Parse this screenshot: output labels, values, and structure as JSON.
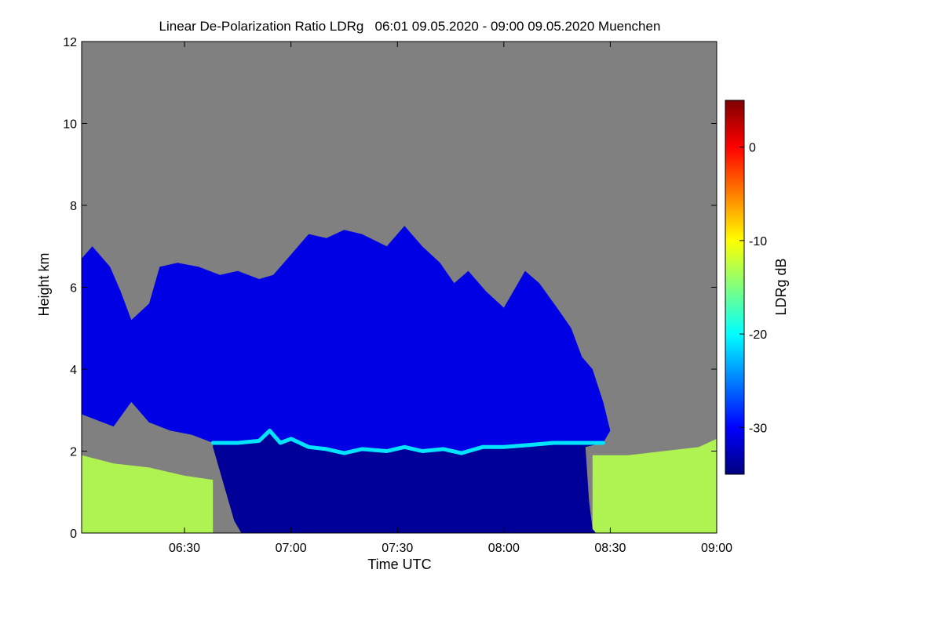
{
  "chart_data": {
    "type": "heatmap",
    "title": "Linear De-Polarization Ratio LDRg   06:01 09.05.2020 - 09:00 09.05.2020 Muenchen",
    "xlabel": "Time UTC",
    "ylabel": "Height km",
    "colorbar_label": "LDRg dB",
    "xlim_minutes": [
      361,
      540
    ],
    "ylim": [
      0,
      12
    ],
    "x_ticks": [
      {
        "minute": 390,
        "label": "06:30"
      },
      {
        "minute": 420,
        "label": "07:00"
      },
      {
        "minute": 450,
        "label": "07:30"
      },
      {
        "minute": 480,
        "label": "08:00"
      },
      {
        "minute": 510,
        "label": "08:30"
      },
      {
        "minute": 540,
        "label": "09:00"
      }
    ],
    "y_ticks": [
      {
        "value": 0,
        "label": "0"
      },
      {
        "value": 2,
        "label": "2"
      },
      {
        "value": 4,
        "label": "4"
      },
      {
        "value": 6,
        "label": "6"
      },
      {
        "value": 8,
        "label": "8"
      },
      {
        "value": 10,
        "label": "10"
      },
      {
        "value": 12,
        "label": "12"
      }
    ],
    "colorbar": {
      "range": [
        -35,
        5
      ],
      "ticks": [
        {
          "value": 0,
          "label": "0"
        },
        {
          "value": -10,
          "label": "-10"
        },
        {
          "value": -20,
          "label": "-20"
        },
        {
          "value": -30,
          "label": "-30"
        }
      ],
      "colormap": [
        "#00007f",
        "#0000ff",
        "#007fff",
        "#00ffff",
        "#7fff7f",
        "#ffff00",
        "#ff7f00",
        "#ff0000",
        "#7f0000"
      ],
      "no_data_color": "#808080"
    },
    "cloud_top": [
      {
        "t": 361,
        "h": 6.7
      },
      {
        "t": 364,
        "h": 7.0
      },
      {
        "t": 369,
        "h": 6.5
      },
      {
        "t": 372,
        "h": 5.9
      },
      {
        "t": 375,
        "h": 5.2
      },
      {
        "t": 380,
        "h": 5.6
      },
      {
        "t": 383,
        "h": 6.5
      },
      {
        "t": 388,
        "h": 6.6
      },
      {
        "t": 394,
        "h": 6.5
      },
      {
        "t": 400,
        "h": 6.3
      },
      {
        "t": 405,
        "h": 6.4
      },
      {
        "t": 411,
        "h": 6.2
      },
      {
        "t": 415,
        "h": 6.3
      },
      {
        "t": 420,
        "h": 6.8
      },
      {
        "t": 425,
        "h": 7.3
      },
      {
        "t": 430,
        "h": 7.2
      },
      {
        "t": 435,
        "h": 7.4
      },
      {
        "t": 440,
        "h": 7.3
      },
      {
        "t": 447,
        "h": 7.0
      },
      {
        "t": 452,
        "h": 7.5
      },
      {
        "t": 457,
        "h": 7.0
      },
      {
        "t": 462,
        "h": 6.6
      },
      {
        "t": 466,
        "h": 6.1
      },
      {
        "t": 470,
        "h": 6.4
      },
      {
        "t": 475,
        "h": 5.9
      },
      {
        "t": 480,
        "h": 5.5
      },
      {
        "t": 486,
        "h": 6.4
      },
      {
        "t": 490,
        "h": 6.1
      },
      {
        "t": 495,
        "h": 5.5
      },
      {
        "t": 499,
        "h": 5.0
      },
      {
        "t": 502,
        "h": 4.3
      },
      {
        "t": 505,
        "h": 4.0
      },
      {
        "t": 508,
        "h": 3.2
      },
      {
        "t": 510,
        "h": 2.5
      }
    ],
    "cloud_base_left": [
      {
        "t": 361,
        "h": 2.9
      },
      {
        "t": 370,
        "h": 2.6
      },
      {
        "t": 375,
        "h": 3.2
      },
      {
        "t": 380,
        "h": 2.7
      },
      {
        "t": 386,
        "h": 2.5
      },
      {
        "t": 392,
        "h": 2.4
      },
      {
        "t": 398,
        "h": 2.2
      }
    ],
    "melting_layer": [
      {
        "t": 398,
        "h": 2.2
      },
      {
        "t": 405,
        "h": 2.2
      },
      {
        "t": 411,
        "h": 2.25
      },
      {
        "t": 414,
        "h": 2.5
      },
      {
        "t": 417,
        "h": 2.2
      },
      {
        "t": 420,
        "h": 2.3
      },
      {
        "t": 425,
        "h": 2.1
      },
      {
        "t": 430,
        "h": 2.05
      },
      {
        "t": 435,
        "h": 1.95
      },
      {
        "t": 440,
        "h": 2.05
      },
      {
        "t": 447,
        "h": 2.0
      },
      {
        "t": 452,
        "h": 2.1
      },
      {
        "t": 457,
        "h": 2.0
      },
      {
        "t": 463,
        "h": 2.05
      },
      {
        "t": 468,
        "h": 1.95
      },
      {
        "t": 474,
        "h": 2.1
      },
      {
        "t": 480,
        "h": 2.1
      },
      {
        "t": 487,
        "h": 2.15
      },
      {
        "t": 494,
        "h": 2.2
      },
      {
        "t": 500,
        "h": 2.2
      },
      {
        "t": 508,
        "h": 2.2
      }
    ],
    "rain_edge": [
      {
        "t": 398,
        "h": 2.1
      },
      {
        "t": 402,
        "h": 0.9
      },
      {
        "t": 404,
        "h": 0.3
      },
      {
        "t": 406,
        "h": 0
      }
    ],
    "rain_edge_right": [
      {
        "t": 503,
        "h": 2.1
      },
      {
        "t": 504,
        "h": 0.8
      },
      {
        "t": 505,
        "h": 0.1
      },
      {
        "t": 506,
        "h": 0
      }
    ],
    "boundary_layer_top": [
      {
        "t": 361,
        "h": 1.9
      },
      {
        "t": 370,
        "h": 1.7
      },
      {
        "t": 380,
        "h": 1.6
      },
      {
        "t": 390,
        "h": 1.4
      },
      {
        "t": 398,
        "h": 1.3
      }
    ],
    "boundary_layer_top_right": [
      {
        "t": 505,
        "h": 1.9
      },
      {
        "t": 515,
        "h": 1.9
      },
      {
        "t": 525,
        "h": 2.0
      },
      {
        "t": 535,
        "h": 2.1
      },
      {
        "t": 540,
        "h": 2.3
      }
    ],
    "ldr_values": {
      "cloud": -31,
      "rain": -34,
      "melting_layer": -21,
      "boundary_layer": -13
    }
  }
}
